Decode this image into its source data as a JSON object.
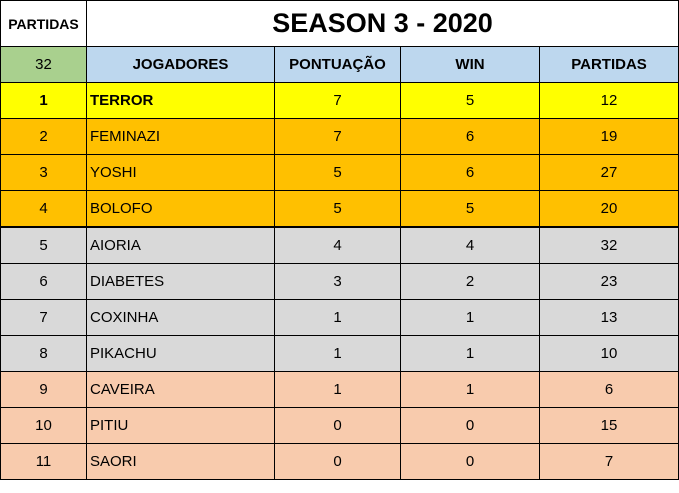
{
  "corner_label": "PARTIDAS",
  "title": "SEASON 3 - 2020",
  "total_partidas": "32",
  "headers": [
    "JOGADORES",
    "PONTUAÇÃO",
    "WIN",
    "PARTIDAS"
  ],
  "rows": [
    {
      "rank": "1",
      "player": "TERROR",
      "pontuacao": "7",
      "win": "5",
      "partidas": "12",
      "color": "#ffff00"
    },
    {
      "rank": "2",
      "player": "FEMINAZI",
      "pontuacao": "7",
      "win": "6",
      "partidas": "19",
      "color": "#ffc000"
    },
    {
      "rank": "3",
      "player": "YOSHI",
      "pontuacao": "5",
      "win": "6",
      "partidas": "27",
      "color": "#ffc000"
    },
    {
      "rank": "4",
      "player": "BOLOFO",
      "pontuacao": "5",
      "win": "5",
      "partidas": "20",
      "color": "#ffc000"
    },
    {
      "rank": "5",
      "player": "AIORIA",
      "pontuacao": "4",
      "win": "4",
      "partidas": "32",
      "color": "#d9d9d9"
    },
    {
      "rank": "6",
      "player": "DIABETES",
      "pontuacao": "3",
      "win": "2",
      "partidas": "23",
      "color": "#d9d9d9"
    },
    {
      "rank": "7",
      "player": "COXINHA",
      "pontuacao": "1",
      "win": "1",
      "partidas": "13",
      "color": "#d9d9d9"
    },
    {
      "rank": "8",
      "player": "PIKACHU",
      "pontuacao": "1",
      "win": "1",
      "partidas": "10",
      "color": "#d9d9d9"
    },
    {
      "rank": "9",
      "player": "CAVEIRA",
      "pontuacao": "1",
      "win": "1",
      "partidas": "6",
      "color": "#f8cbad"
    },
    {
      "rank": "10",
      "player": "PITIU",
      "pontuacao": "0",
      "win": "0",
      "partidas": "15",
      "color": "#f8cbad"
    },
    {
      "rank": "11",
      "player": "SAORI",
      "pontuacao": "0",
      "win": "0",
      "partidas": "7",
      "color": "#f8cbad"
    }
  ]
}
